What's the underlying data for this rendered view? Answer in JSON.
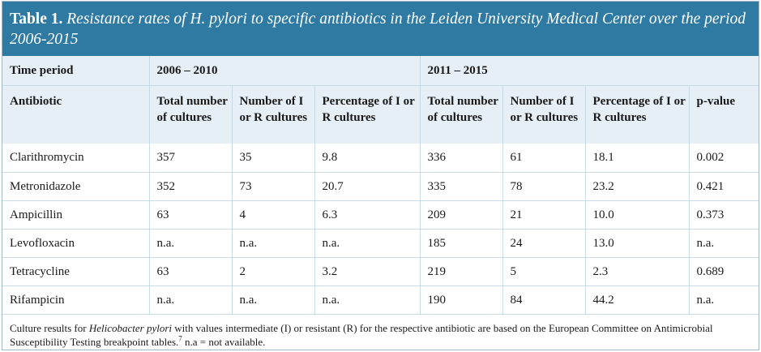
{
  "caption": {
    "label": "Table 1.",
    "text": " Resistance rates of H. pylori to specific antibiotics in the Leiden University Medical Center over the period 2006-2015"
  },
  "header": {
    "time_period": "Time period",
    "period_1": "2006 – 2010",
    "period_2": "2011 – 2015",
    "antibiotic": "Antibiotic",
    "total_cultures": "Total number of cultures",
    "number_ir": "Number of I or R cultures",
    "percentage_ir": "Percentage of I or R cultures",
    "p_value": "p-value"
  },
  "rows": [
    {
      "antibiotic": "Clarithromycin",
      "p1_total": "357",
      "p1_number": "35",
      "p1_pct": "9.8",
      "p2_total": "336",
      "p2_number": "61",
      "p2_pct": "18.1",
      "p_value": "0.002"
    },
    {
      "antibiotic": "Metronidazole",
      "p1_total": "352",
      "p1_number": "73",
      "p1_pct": "20.7",
      "p2_total": "335",
      "p2_number": "78",
      "p2_pct": "23.2",
      "p_value": "0.421"
    },
    {
      "antibiotic": "Ampicillin",
      "p1_total": "63",
      "p1_number": "4",
      "p1_pct": "6.3",
      "p2_total": "209",
      "p2_number": "21",
      "p2_pct": "10.0",
      "p_value": "0.373"
    },
    {
      "antibiotic": "Levofloxacin",
      "p1_total": "n.a.",
      "p1_number": "n.a.",
      "p1_pct": "n.a.",
      "p2_total": "185",
      "p2_number": "24",
      "p2_pct": "13.0",
      "p_value": "n.a."
    },
    {
      "antibiotic": "Tetracycline",
      "p1_total": "63",
      "p1_number": "2",
      "p1_pct": "3.2",
      "p2_total": "219",
      "p2_number": "5",
      "p2_pct": "2.3",
      "p_value": "0.689"
    },
    {
      "antibiotic": "Rifampicin",
      "p1_total": "n.a.",
      "p1_number": "n.a.",
      "p1_pct": "n.a.",
      "p2_total": "190",
      "p2_number": "84",
      "p2_pct": "44.2",
      "p_value": "n.a."
    }
  ],
  "footnote": {
    "part1": "Culture results for ",
    "organism": "Helicobacter pylori",
    "part2": " with values intermediate (I) or resistant (R) for the respective antibiotic are based on the European Committee on Antimicrobial Susceptibility Testing breakpoint tables.",
    "ref": "7",
    "part3": " n.a = not available."
  },
  "colors": {
    "caption_bg": "#2f7aa2",
    "header_bg": "#e6eff6",
    "rule": "#c6dbe6"
  }
}
